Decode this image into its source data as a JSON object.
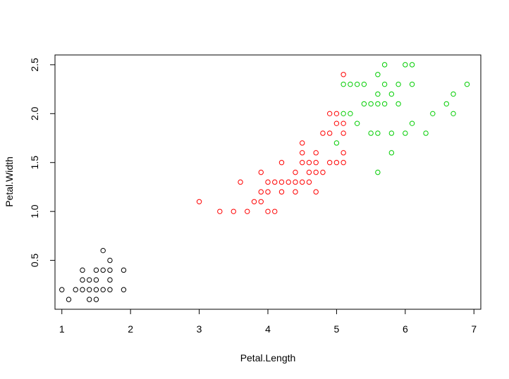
{
  "chart_data": {
    "type": "scatter",
    "title": "",
    "xlabel": "Petal.Length",
    "ylabel": "Petal.Width",
    "xlim": [
      0.9,
      7.1
    ],
    "ylim": [
      0.0,
      2.6
    ],
    "xticks": [
      1,
      2,
      3,
      4,
      5,
      6,
      7
    ],
    "yticks": [
      0.5,
      1.0,
      1.5,
      2.0,
      2.5
    ],
    "xtick_labels": [
      "1",
      "2",
      "3",
      "4",
      "5",
      "6",
      "7"
    ],
    "ytick_labels": [
      "0.5",
      "1.0",
      "1.5",
      "2.0",
      "2.5"
    ],
    "grid": false,
    "legend": false,
    "marker": "open-circle",
    "series": [
      {
        "color": "#000000",
        "points": [
          [
            1.0,
            0.2
          ],
          [
            1.1,
            0.1
          ],
          [
            1.2,
            0.2
          ],
          [
            1.3,
            0.2
          ],
          [
            1.3,
            0.3
          ],
          [
            1.3,
            0.4
          ],
          [
            1.4,
            0.1
          ],
          [
            1.4,
            0.2
          ],
          [
            1.4,
            0.3
          ],
          [
            1.5,
            0.1
          ],
          [
            1.5,
            0.2
          ],
          [
            1.5,
            0.3
          ],
          [
            1.5,
            0.4
          ],
          [
            1.6,
            0.2
          ],
          [
            1.6,
            0.4
          ],
          [
            1.6,
            0.6
          ],
          [
            1.7,
            0.2
          ],
          [
            1.7,
            0.3
          ],
          [
            1.7,
            0.4
          ],
          [
            1.7,
            0.5
          ],
          [
            1.9,
            0.2
          ],
          [
            1.9,
            0.4
          ]
        ]
      },
      {
        "color": "#ff0000",
        "points": [
          [
            3.0,
            1.1
          ],
          [
            3.3,
            1.0
          ],
          [
            3.5,
            1.0
          ],
          [
            3.6,
            1.3
          ],
          [
            3.7,
            1.0
          ],
          [
            3.8,
            1.1
          ],
          [
            3.9,
            1.1
          ],
          [
            3.9,
            1.2
          ],
          [
            3.9,
            1.4
          ],
          [
            4.0,
            1.0
          ],
          [
            4.0,
            1.2
          ],
          [
            4.0,
            1.3
          ],
          [
            4.1,
            1.0
          ],
          [
            4.1,
            1.3
          ],
          [
            4.2,
            1.2
          ],
          [
            4.2,
            1.3
          ],
          [
            4.2,
            1.5
          ],
          [
            4.3,
            1.3
          ],
          [
            4.4,
            1.2
          ],
          [
            4.4,
            1.3
          ],
          [
            4.4,
            1.4
          ],
          [
            4.5,
            1.3
          ],
          [
            4.5,
            1.5
          ],
          [
            4.5,
            1.6
          ],
          [
            4.5,
            1.7
          ],
          [
            4.6,
            1.3
          ],
          [
            4.6,
            1.4
          ],
          [
            4.6,
            1.5
          ],
          [
            4.7,
            1.2
          ],
          [
            4.7,
            1.4
          ],
          [
            4.7,
            1.5
          ],
          [
            4.7,
            1.6
          ],
          [
            4.8,
            1.4
          ],
          [
            4.8,
            1.8
          ],
          [
            4.9,
            1.5
          ],
          [
            4.9,
            1.8
          ],
          [
            4.9,
            2.0
          ],
          [
            5.0,
            1.5
          ],
          [
            5.0,
            1.9
          ],
          [
            5.0,
            2.0
          ],
          [
            5.1,
            1.5
          ],
          [
            5.1,
            1.6
          ],
          [
            5.1,
            1.8
          ],
          [
            5.1,
            1.9
          ],
          [
            5.1,
            2.4
          ]
        ]
      },
      {
        "color": "#00cd00",
        "points": [
          [
            5.0,
            1.7
          ],
          [
            5.1,
            2.0
          ],
          [
            5.1,
            2.3
          ],
          [
            5.2,
            2.0
          ],
          [
            5.2,
            2.3
          ],
          [
            5.3,
            1.9
          ],
          [
            5.3,
            2.3
          ],
          [
            5.4,
            2.1
          ],
          [
            5.4,
            2.3
          ],
          [
            5.5,
            1.8
          ],
          [
            5.5,
            2.1
          ],
          [
            5.6,
            1.4
          ],
          [
            5.6,
            1.8
          ],
          [
            5.6,
            2.1
          ],
          [
            5.6,
            2.2
          ],
          [
            5.6,
            2.4
          ],
          [
            5.7,
            2.1
          ],
          [
            5.7,
            2.3
          ],
          [
            5.7,
            2.5
          ],
          [
            5.8,
            1.6
          ],
          [
            5.8,
            1.8
          ],
          [
            5.8,
            2.2
          ],
          [
            5.9,
            2.1
          ],
          [
            5.9,
            2.3
          ],
          [
            6.0,
            1.8
          ],
          [
            6.0,
            2.5
          ],
          [
            6.1,
            1.9
          ],
          [
            6.1,
            2.3
          ],
          [
            6.1,
            2.5
          ],
          [
            6.3,
            1.8
          ],
          [
            6.4,
            2.0
          ],
          [
            6.6,
            2.1
          ],
          [
            6.7,
            2.0
          ],
          [
            6.7,
            2.2
          ],
          [
            6.9,
            2.3
          ]
        ]
      }
    ]
  }
}
